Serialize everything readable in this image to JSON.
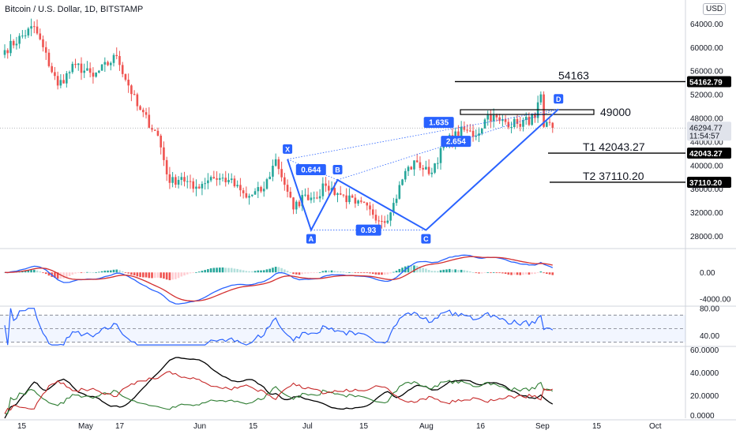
{
  "header": {
    "title": "Bitcoin / U.S. Dollar, 1D, BITSTAMP",
    "currency": "USD"
  },
  "colors": {
    "up": "#26a69a",
    "down": "#ef5350",
    "pattern": "#2962ff",
    "macd_line": "#2962ff",
    "signal_line": "#d32f2f",
    "rsi": "#2962ff",
    "adx": "#000000",
    "di_plus": "#2e7d32",
    "di_minus": "#c62828"
  },
  "chart_data": [
    {
      "type": "candlestick",
      "name": "price",
      "x_axis_labels": [
        "15",
        "May",
        "17",
        "Jun",
        "15",
        "Jul",
        "15",
        "Aug",
        "16",
        "Sep",
        "15",
        "Oct"
      ],
      "y_ticks": [
        28000,
        32000,
        36000,
        40000,
        44000,
        48000,
        52000,
        56000,
        60000,
        64000
      ],
      "y_tick_labels": [
        "28000.00",
        "32000.00",
        "36000.00",
        "40000.00",
        "44000.00",
        "48000.00",
        "52000.00",
        "56000.00",
        "60000.00",
        "64000.00"
      ],
      "ylim": [
        26000,
        68000
      ],
      "close_path": [
        {
          "d": 0,
          "v": 59500
        },
        {
          "d": 10,
          "v": 63500
        },
        {
          "d": 18,
          "v": 53500
        },
        {
          "d": 24,
          "v": 57000
        },
        {
          "d": 30,
          "v": 55000
        },
        {
          "d": 38,
          "v": 58500
        },
        {
          "d": 45,
          "v": 50000
        },
        {
          "d": 52,
          "v": 45000
        },
        {
          "d": 56,
          "v": 37000
        },
        {
          "d": 60,
          "v": 38000
        },
        {
          "d": 64,
          "v": 36000
        },
        {
          "d": 70,
          "v": 38000
        },
        {
          "d": 76,
          "v": 37500
        },
        {
          "d": 82,
          "v": 34500
        },
        {
          "d": 88,
          "v": 36000
        },
        {
          "d": 92,
          "v": 41000
        },
        {
          "d": 96,
          "v": 35500
        },
        {
          "d": 98,
          "v": 32500
        },
        {
          "d": 102,
          "v": 35000
        },
        {
          "d": 105,
          "v": 34500
        },
        {
          "d": 109,
          "v": 36500
        },
        {
          "d": 114,
          "v": 35000
        },
        {
          "d": 119,
          "v": 33500
        },
        {
          "d": 124,
          "v": 32500
        },
        {
          "d": 128,
          "v": 30500
        },
        {
          "d": 131,
          "v": 32000
        },
        {
          "d": 136,
          "v": 39000
        },
        {
          "d": 140,
          "v": 40500
        },
        {
          "d": 144,
          "v": 38500
        },
        {
          "d": 150,
          "v": 44000
        },
        {
          "d": 156,
          "v": 46000
        },
        {
          "d": 160,
          "v": 45000
        },
        {
          "d": 164,
          "v": 48500
        },
        {
          "d": 168,
          "v": 47500
        },
        {
          "d": 174,
          "v": 47000
        },
        {
          "d": 180,
          "v": 48000
        },
        {
          "d": 182,
          "v": 52000
        },
        {
          "d": 183,
          "v": 46500
        },
        {
          "d": 186,
          "v": 46300
        }
      ],
      "last_price": 46294.77,
      "last_price_label": "46294.77",
      "countdown": "11:54:57",
      "levels": [
        {
          "name": "target",
          "text": "54163",
          "axis_label": "54162.79",
          "value": 54162.79
        },
        {
          "name": "resistance",
          "text": "49000",
          "axis_label": "",
          "value": 49000
        },
        {
          "name": "t1",
          "text": "T1   42043.27",
          "axis_label": "42043.27",
          "value": 42043.27
        },
        {
          "name": "t2",
          "text": "T2   37110.20",
          "axis_label": "37110.20",
          "value": 37110.2
        }
      ],
      "harmonic_pattern": {
        "points": [
          {
            "label": "X",
            "d": 96,
            "v": 41000
          },
          {
            "label": "A",
            "d": 104,
            "v": 29000
          },
          {
            "label": "B",
            "d": 113,
            "v": 37500
          },
          {
            "label": "C",
            "d": 143,
            "v": 29000
          },
          {
            "label": "D",
            "d": 188,
            "v": 49500
          }
        ],
        "ratios": [
          "0.644",
          "0.93",
          "1.635",
          "2.654"
        ]
      }
    },
    {
      "type": "line",
      "name": "macd",
      "y_tick_labels": [
        "0.00",
        "-4000.00"
      ],
      "ylim": [
        -5000,
        3500
      ],
      "series": [
        {
          "name": "",
          "color": "#2962ff"
        },
        {
          "name": "",
          "color": "#d32f2f"
        }
      ]
    },
    {
      "type": "line",
      "name": "rsi",
      "y_tick_labels": [
        "80.00",
        "40.00"
      ],
      "ylim": [
        25,
        82
      ],
      "band": [
        30,
        70
      ]
    },
    {
      "type": "line",
      "name": "dmi",
      "y_tick_labels": [
        "60.0000",
        "40.0000",
        "20.0000",
        "0.0000"
      ],
      "ylim": [
        0,
        62
      ]
    }
  ]
}
